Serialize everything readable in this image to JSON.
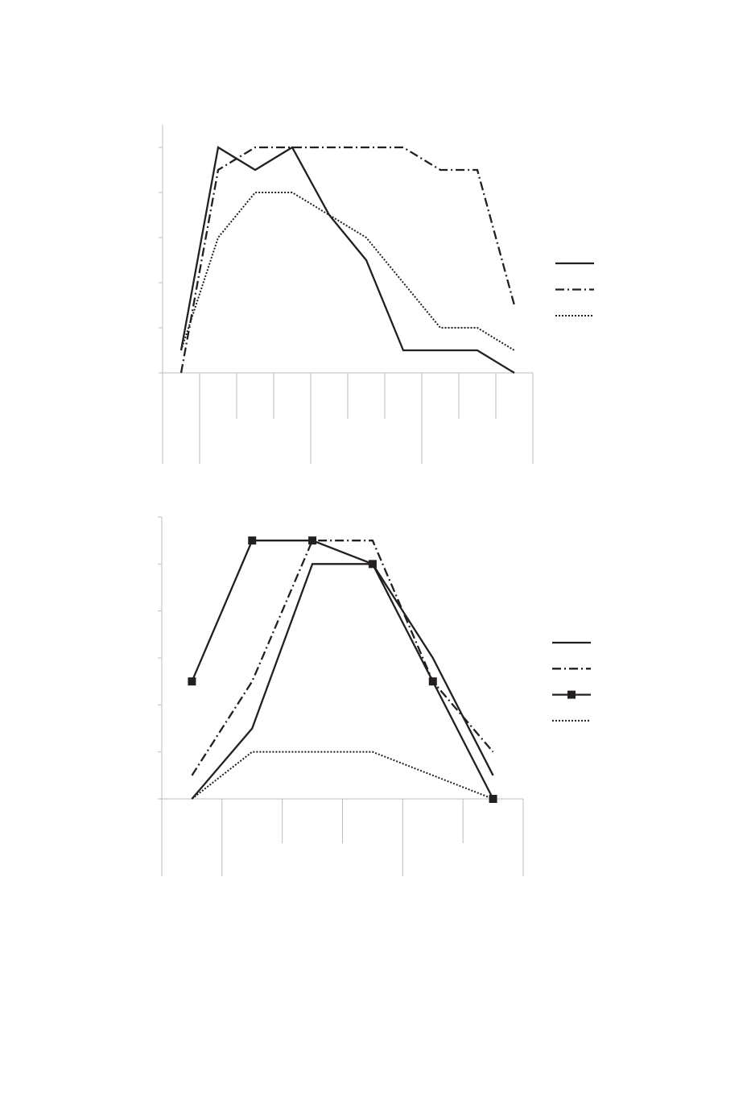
{
  "chart_data": [
    {
      "type": "line",
      "categories": [
        null,
        null,
        null,
        null,
        null,
        null,
        null,
        null,
        null,
        null
      ],
      "ylim": [
        0,
        5.5
      ],
      "yticks": [
        0,
        1,
        2,
        3,
        4,
        5
      ],
      "grid": false,
      "legend": "right",
      "series": [
        {
          "color": "#231f20",
          "style": "solid",
          "values": [
            0.5,
            5,
            4.5,
            5,
            3.5,
            2.5,
            0.5,
            0.5,
            0.5,
            0
          ]
        },
        {
          "color": "#231f20",
          "style": "dashdot",
          "values": [
            0,
            4.5,
            5,
            5,
            5,
            5,
            5,
            4.5,
            4.5,
            1.5
          ]
        },
        {
          "color": "#231f20",
          "style": "dotted",
          "values": [
            0.5,
            3,
            4,
            4,
            3.5,
            3,
            2,
            1,
            1,
            0.5
          ]
        }
      ]
    },
    {
      "type": "line",
      "categories": [
        null,
        null,
        null,
        null,
        null,
        null
      ],
      "ylim": [
        0,
        6
      ],
      "yticks": [
        0,
        1,
        2,
        3,
        4,
        5,
        6
      ],
      "grid": false,
      "legend": "right",
      "series": [
        {
          "color": "#231f20",
          "style": "solid",
          "values": [
            0,
            1.5,
            5,
            5,
            3,
            0.5
          ]
        },
        {
          "color": "#231f20",
          "style": "dashdot",
          "values": [
            0.5,
            2.5,
            5.5,
            5.5,
            2.5,
            1
          ]
        },
        {
          "color": "#231f20",
          "style": "solid",
          "marker": "square",
          "values": [
            2.5,
            5.5,
            5.5,
            5,
            2.5,
            0
          ]
        },
        {
          "color": "#231f20",
          "style": "dotted",
          "values": [
            0,
            1,
            1,
            1,
            0.5,
            0
          ]
        }
      ]
    }
  ]
}
